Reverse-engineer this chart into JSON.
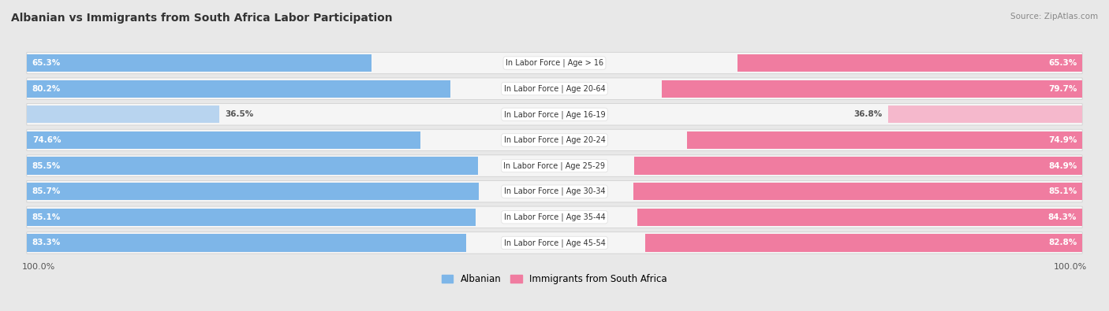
{
  "title": "Albanian vs Immigrants from South Africa Labor Participation",
  "source": "Source: ZipAtlas.com",
  "categories": [
    "In Labor Force | Age > 16",
    "In Labor Force | Age 20-64",
    "In Labor Force | Age 16-19",
    "In Labor Force | Age 20-24",
    "In Labor Force | Age 25-29",
    "In Labor Force | Age 30-34",
    "In Labor Force | Age 35-44",
    "In Labor Force | Age 45-54"
  ],
  "albanian": [
    65.3,
    80.2,
    36.5,
    74.6,
    85.5,
    85.7,
    85.1,
    83.3
  ],
  "immigrants": [
    65.3,
    79.7,
    36.8,
    74.9,
    84.9,
    85.1,
    84.3,
    82.8
  ],
  "albanian_color_dark": "#7EB6E8",
  "albanian_color_light": "#B8D4EF",
  "immigrants_color_dark": "#F07CA0",
  "immigrants_color_light": "#F5B8CC",
  "background_color": "#e8e8e8",
  "row_bg_color": "#f5f5f5",
  "max_value": 100.0,
  "color_threshold": 50.0,
  "legend_albanian": "Albanian",
  "legend_immigrants": "Immigrants from South Africa"
}
